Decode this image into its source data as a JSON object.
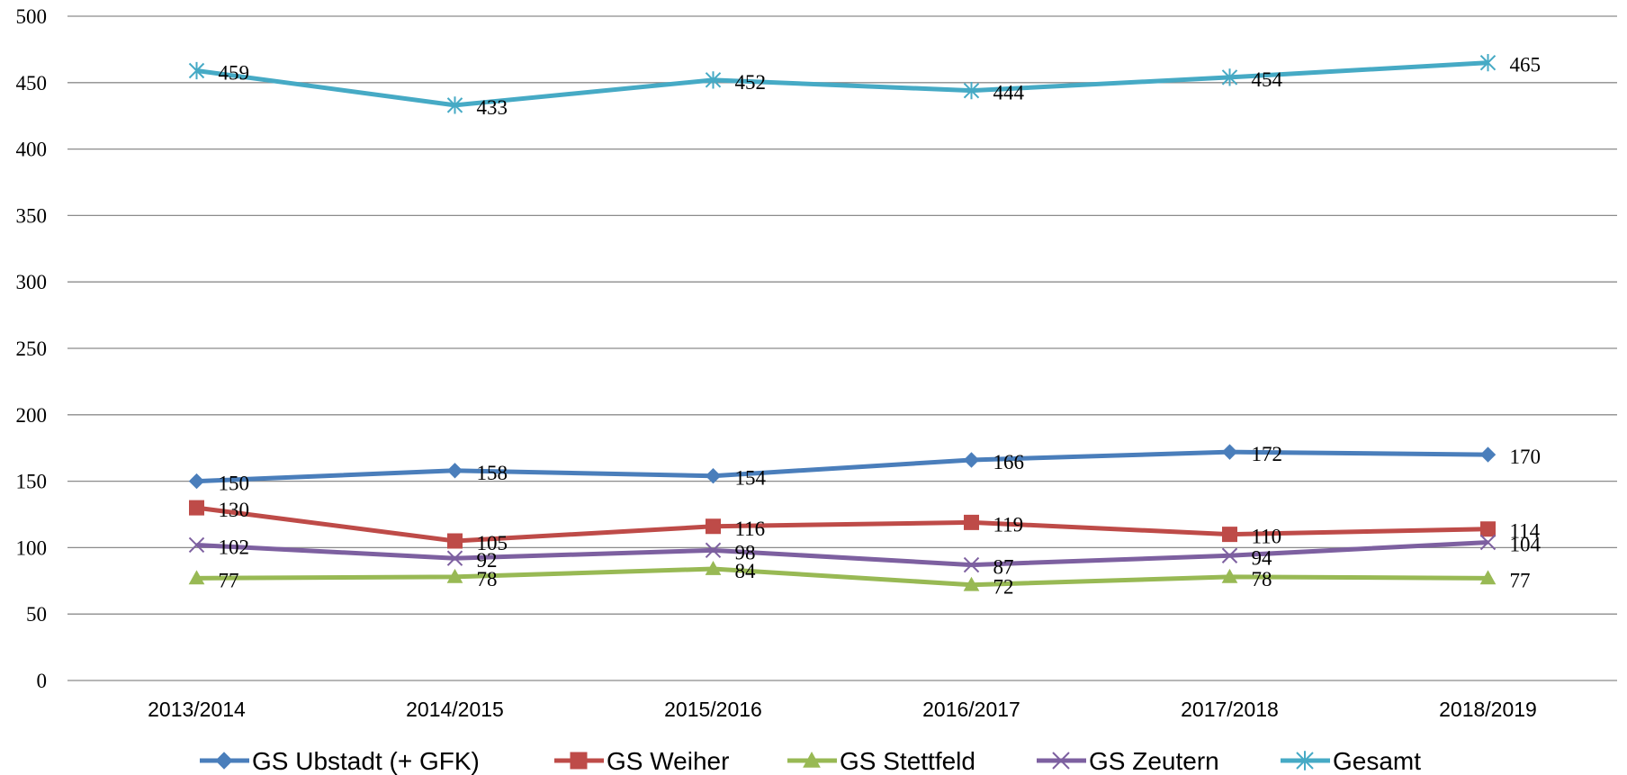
{
  "chart_data": {
    "type": "line",
    "categories": [
      "2013/2014",
      "2014/2015",
      "2015/2016",
      "2016/2017",
      "2017/2018",
      "2018/2019"
    ],
    "series": [
      {
        "name": "GS Ubstadt (+ GFK)",
        "color": "#4a7ebb",
        "marker": "diamond",
        "values": [
          150,
          158,
          154,
          166,
          172,
          170
        ]
      },
      {
        "name": "GS Weiher",
        "color": "#be4b48",
        "marker": "square",
        "values": [
          130,
          105,
          116,
          119,
          110,
          114
        ]
      },
      {
        "name": "GS Stettfeld",
        "color": "#98b954",
        "marker": "triangle",
        "values": [
          77,
          78,
          84,
          72,
          78,
          77
        ]
      },
      {
        "name": "GS Zeutern",
        "color": "#7d60a0",
        "marker": "x",
        "values": [
          102,
          92,
          98,
          87,
          94,
          104
        ]
      },
      {
        "name": "Gesamt",
        "color": "#46aac5",
        "marker": "asterisk",
        "values": [
          459,
          433,
          452,
          444,
          454,
          465
        ]
      }
    ],
    "ylim": [
      0,
      500
    ],
    "yticks": [
      0,
      50,
      100,
      150,
      200,
      250,
      300,
      350,
      400,
      450,
      500
    ],
    "grid": true,
    "legend": "bottom"
  }
}
